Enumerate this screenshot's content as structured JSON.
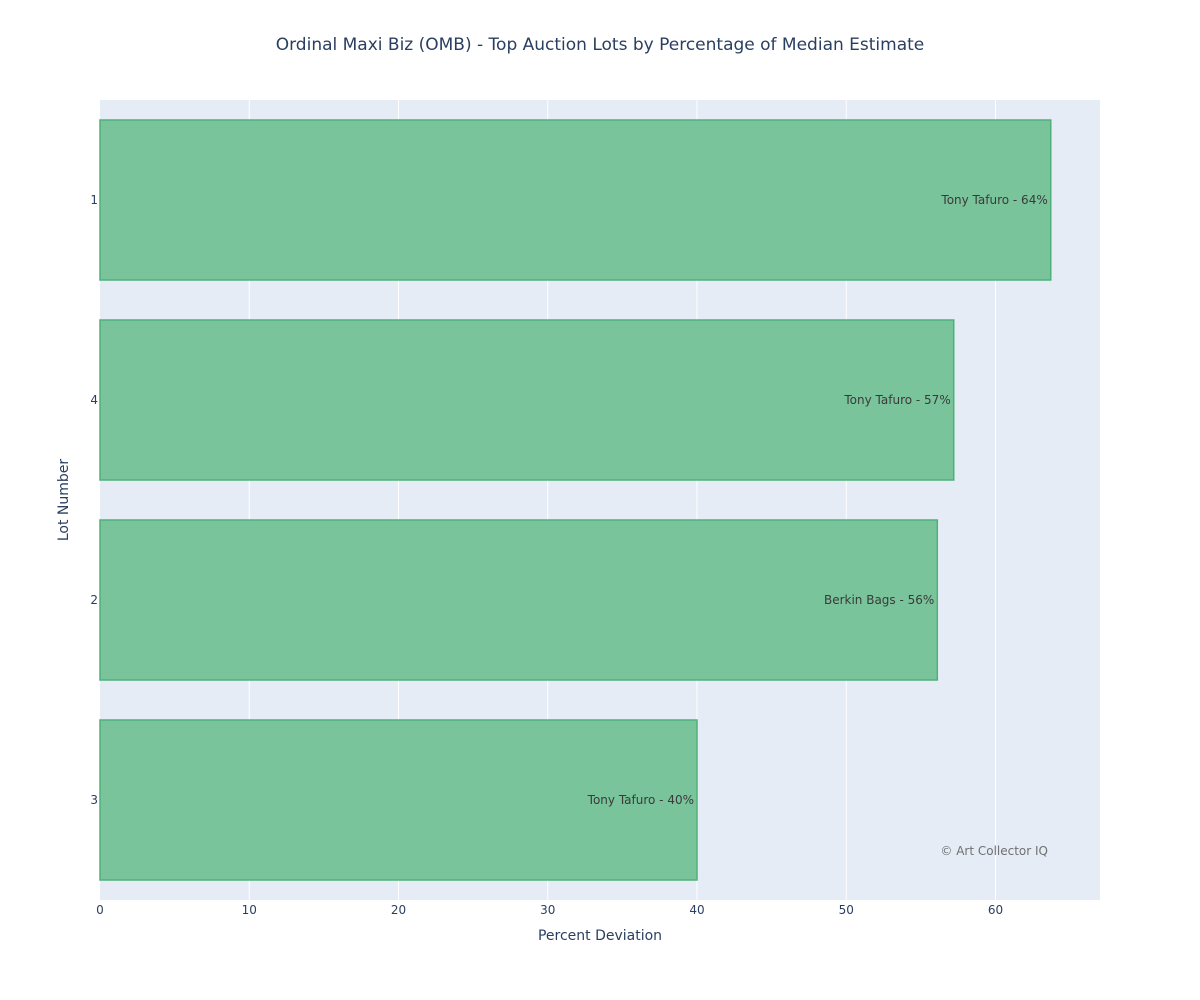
{
  "chart_data": {
    "type": "bar",
    "orientation": "horizontal",
    "title": "Ordinal Maxi Biz (OMB) - Top Auction Lots by Percentage of Median Estimate",
    "xlabel": "Percent Deviation",
    "ylabel": "Lot Number",
    "categories": [
      "1",
      "4",
      "2",
      "3"
    ],
    "values": [
      63.7,
      57.2,
      56.1,
      40.0
    ],
    "bar_labels": [
      "Tony Tafuro - 64%",
      "Tony Tafuro - 57%",
      "Berkin Bags - 56%",
      "Tony Tafuro - 40%"
    ],
    "xlim": [
      0,
      67
    ],
    "xticks": [
      0,
      10,
      20,
      30,
      40,
      50,
      60
    ],
    "xtick_labels": [
      "0",
      "10",
      "20",
      "30",
      "40",
      "50",
      "60"
    ],
    "grid": true,
    "annotation": "© Art Collector IQ",
    "colors": {
      "bar_fill": "#79c49a",
      "bar_stroke": "#4fb07a",
      "plot_bg": "#e5ecf6",
      "grid": "#ffffff",
      "text": "#2a3f5f"
    }
  }
}
